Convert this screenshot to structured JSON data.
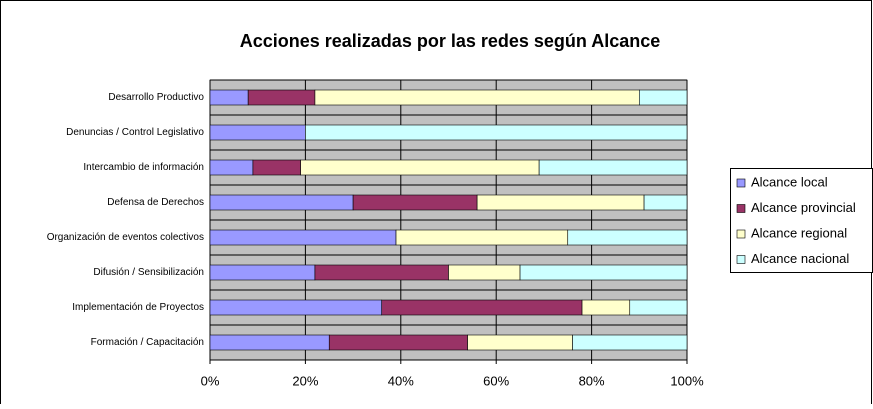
{
  "chart_data": {
    "type": "stacked_bar_horizontal",
    "title": "Acciones realizadas por las redes según Alcance",
    "categories": [
      "Desarrollo Productivo",
      "Denuncias / Control Legislativo",
      "Intercambio de información",
      "Defensa de Derechos",
      "Organización de eventos colectivos",
      "Difusión / Sensibilización",
      "Implementación de Proyectos",
      "Formación / Capacitación"
    ],
    "series": [
      {
        "name": "Alcance local",
        "color": "#9999ff",
        "values": [
          8,
          20,
          9,
          30,
          39,
          22,
          36,
          25
        ]
      },
      {
        "name": "Alcance provincial",
        "color": "#993366",
        "values": [
          14,
          0,
          10,
          26,
          0,
          28,
          42,
          29
        ]
      },
      {
        "name": "Alcance regional",
        "color": "#ffffcc",
        "values": [
          68,
          0,
          50,
          35,
          36,
          15,
          10,
          22
        ]
      },
      {
        "name": "Alcance nacional",
        "color": "#ccffff",
        "values": [
          10,
          80,
          31,
          9,
          25,
          35,
          12,
          24
        ]
      }
    ],
    "xlim": [
      0,
      100
    ],
    "xticks": [
      {
        "value": 0,
        "label": "0%"
      },
      {
        "value": 20,
        "label": "20%"
      },
      {
        "value": 40,
        "label": "40%"
      },
      {
        "value": 60,
        "label": "60%"
      },
      {
        "value": 80,
        "label": "80%"
      },
      {
        "value": 100,
        "label": "100%"
      }
    ],
    "grid": true,
    "legend": "right"
  }
}
